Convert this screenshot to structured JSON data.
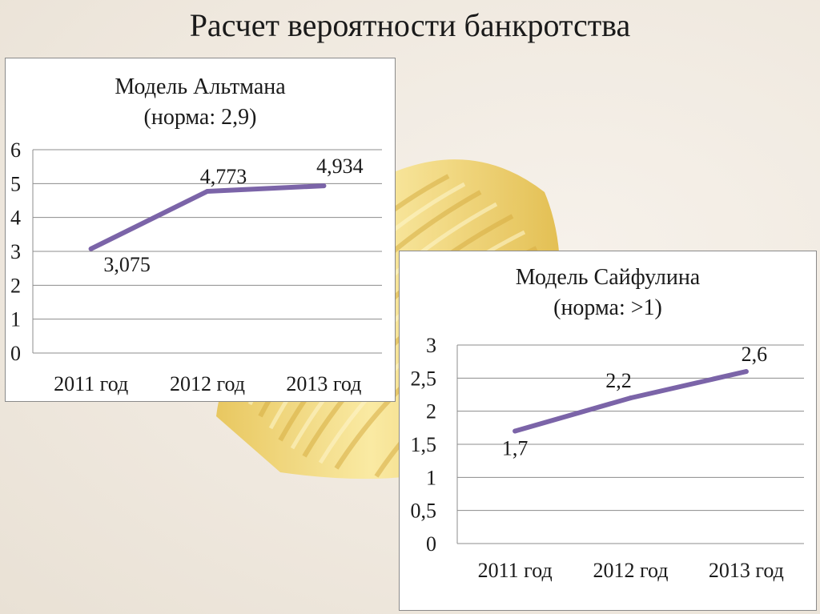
{
  "slide": {
    "title": "Расчет вероятности банкротства"
  },
  "colors": {
    "line": "#7B64A8",
    "grid": "#8c8c8c",
    "background": "#efe8de"
  },
  "chart_data": [
    {
      "type": "line",
      "title": "Модель Альтмана",
      "subtitle": "(норма: 2,9)",
      "categories": [
        "2011 год",
        "2012 год",
        "2013 год"
      ],
      "series": [
        {
          "values": [
            3.075,
            4.773,
            4.934
          ]
        }
      ],
      "data_labels": [
        "3,075",
        "4,773",
        "4,934"
      ],
      "ylim": [
        0,
        6
      ],
      "yticks": [
        0,
        1,
        2,
        3,
        4,
        5,
        6
      ],
      "ytick_labels": [
        "0",
        "1",
        "2",
        "3",
        "4",
        "5",
        "6"
      ],
      "grid": true,
      "legend": "none"
    },
    {
      "type": "line",
      "title": "Модель Сайфулина",
      "subtitle": "(норма: >1)",
      "categories": [
        "2011 год",
        "2012 год",
        "2013 год"
      ],
      "series": [
        {
          "values": [
            1.7,
            2.2,
            2.6
          ]
        }
      ],
      "data_labels": [
        "1,7",
        "2,2",
        "2,6"
      ],
      "ylim": [
        0,
        3
      ],
      "yticks": [
        0,
        0.5,
        1,
        1.5,
        2,
        2.5,
        3
      ],
      "ytick_labels": [
        "0",
        "0,5",
        "1",
        "1,5",
        "2",
        "2,5",
        "3"
      ],
      "grid": true,
      "legend": "none"
    }
  ]
}
